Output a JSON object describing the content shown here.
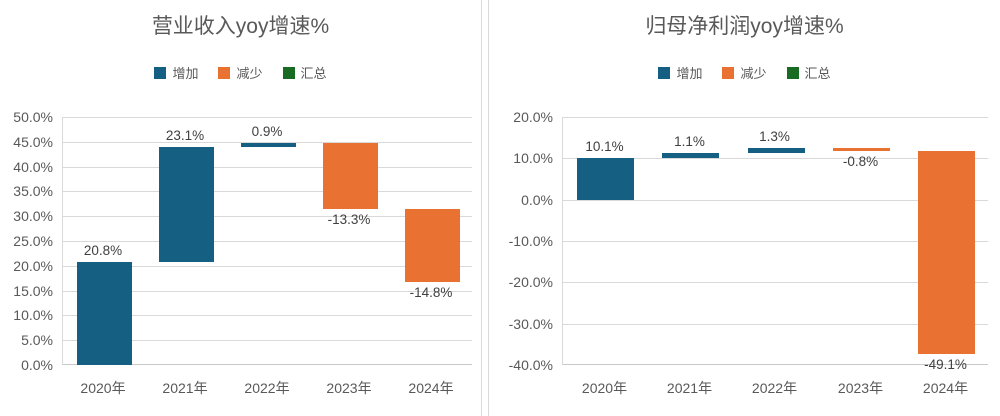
{
  "colors": {
    "increase": "#156082",
    "decrease": "#E97132",
    "total": "#196B24",
    "gridline": "#D9D9D9",
    "tick_text": "#595959",
    "title_text": "#595959",
    "data_label_text": "#404040",
    "divider": "#D9D9D9",
    "background": "#FFFFFF"
  },
  "chart_data": [
    {
      "type": "bar",
      "subtype": "waterfall",
      "title": "营业收入yoy增速%",
      "legend": [
        {
          "label": "增加",
          "color_key": "increase"
        },
        {
          "label": "减少",
          "color_key": "decrease"
        },
        {
          "label": "汇总",
          "color_key": "total"
        }
      ],
      "legend_position": "top",
      "grid": true,
      "categories": [
        "2020年",
        "2021年",
        "2022年",
        "2023年",
        "2024年"
      ],
      "values": [
        20.8,
        23.1,
        0.9,
        -13.3,
        -14.8
      ],
      "data_labels": [
        "20.8%",
        "23.1%",
        "0.9%",
        "-13.3%",
        "-14.8%"
      ],
      "cumulative": [
        20.8,
        43.9,
        44.8,
        31.5,
        16.7
      ],
      "xlabel": "",
      "ylabel": "",
      "ylim": [
        0,
        50
      ],
      "yticks": [
        0,
        5,
        10,
        15,
        20,
        25,
        30,
        35,
        40,
        45,
        50
      ],
      "ytick_labels": [
        "0.0%",
        "5.0%",
        "10.0%",
        "15.0%",
        "20.0%",
        "25.0%",
        "30.0%",
        "35.0%",
        "40.0%",
        "45.0%",
        "50.0%"
      ]
    },
    {
      "type": "bar",
      "subtype": "waterfall",
      "title": "归母净利润yoy增速%",
      "legend": [
        {
          "label": "增加",
          "color_key": "increase"
        },
        {
          "label": "减少",
          "color_key": "decrease"
        },
        {
          "label": "汇总",
          "color_key": "total"
        }
      ],
      "legend_position": "top",
      "grid": true,
      "categories": [
        "2020年",
        "2021年",
        "2022年",
        "2023年",
        "2024年"
      ],
      "values": [
        10.1,
        1.1,
        1.3,
        -0.8,
        -49.1
      ],
      "data_labels": [
        "10.1%",
        "1.1%",
        "1.3%",
        "-0.8%",
        "-49.1%"
      ],
      "cumulative": [
        10.1,
        11.2,
        12.5,
        11.7,
        -37.4
      ],
      "xlabel": "",
      "ylabel": "",
      "ylim": [
        -40,
        20
      ],
      "yticks": [
        -40,
        -30,
        -20,
        -10,
        0,
        10,
        20
      ],
      "ytick_labels": [
        "-40.0%",
        "-30.0%",
        "-20.0%",
        "-10.0%",
        "0.0%",
        "10.0%",
        "20.0%"
      ]
    }
  ]
}
